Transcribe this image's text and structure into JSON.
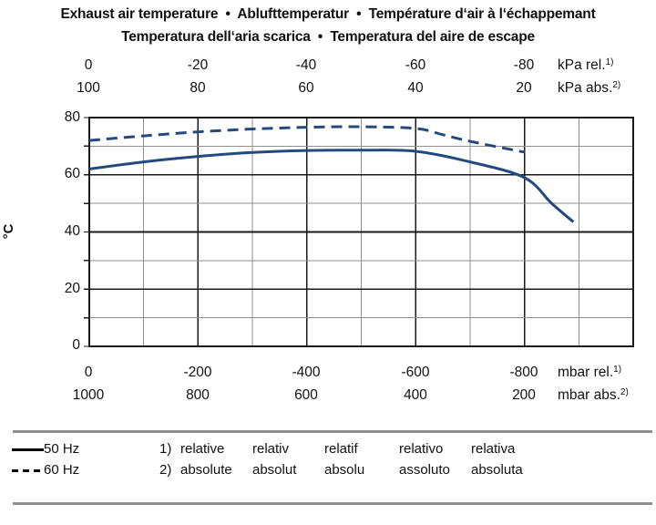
{
  "page": {
    "background": "#ffffff",
    "text_color": "#111111",
    "rule_color": "#8f8f8f"
  },
  "title": {
    "line1": "Exhaust air temperature  •  Ablufttemperatur  •  Température d‘air à l‘échappemant",
    "line2": "Temperatura dell‘aria scarica  •  Temperatura del aire de escape"
  },
  "chart_data": {
    "type": "line",
    "title": "Exhaust air temperature  •  Ablufttemperatur  •  Température d‘air à l‘échappemant  /  Temperatura dell‘aria scarica  •  Temperatura del aire de escape",
    "grid": {
      "major_color": "#1a1a1a",
      "minor_color": "#8f8f8f",
      "border_color": "#1a1a1a"
    },
    "x_axis": {
      "range_mbar_rel": [
        0,
        -1000
      ],
      "minor_step": 100,
      "major_step": 200,
      "top_row_1": {
        "ticks": [
          "0",
          "-20",
          "-40",
          "-60",
          "-80"
        ],
        "unit": "kPa rel.",
        "unit_sup": "1)"
      },
      "top_row_2": {
        "ticks": [
          "100",
          "80",
          "60",
          "40",
          "20"
        ],
        "unit": "kPa abs.",
        "unit_sup": "2)"
      },
      "bottom_row_1": {
        "ticks": [
          "0",
          "-200",
          "-400",
          "-600",
          "-800"
        ],
        "unit": "mbar rel.",
        "unit_sup": "1)"
      },
      "bottom_row_2": {
        "ticks": [
          "1000",
          "800",
          "600",
          "400",
          "200"
        ],
        "unit": "mbar abs.",
        "unit_sup": "2)"
      }
    },
    "y_axis": {
      "label": "°C",
      "range": [
        0,
        80
      ],
      "minor_step": 10,
      "major_step": 20,
      "ticks_top_to_bottom": [
        "80",
        "60",
        "40",
        "20",
        "0"
      ]
    },
    "series": [
      {
        "name": "50 Hz",
        "style": "solid",
        "color": "#24497f",
        "points_mbar_rel_vs_degC": [
          [
            0,
            62
          ],
          [
            -100,
            64.5
          ],
          [
            -200,
            66.4
          ],
          [
            -300,
            67.8
          ],
          [
            -400,
            68.5
          ],
          [
            -500,
            68.6
          ],
          [
            -600,
            68.2
          ],
          [
            -700,
            64.5
          ],
          [
            -800,
            59
          ],
          [
            -850,
            50
          ],
          [
            -890,
            43.5
          ]
        ]
      },
      {
        "name": "60 Hz",
        "style": "dashed",
        "color": "#24497f",
        "points_mbar_rel_vs_degC": [
          [
            0,
            72
          ],
          [
            -100,
            73.6
          ],
          [
            -200,
            75
          ],
          [
            -300,
            76
          ],
          [
            -400,
            76.6
          ],
          [
            -500,
            76.8
          ],
          [
            -600,
            76.2
          ],
          [
            -650,
            74
          ],
          [
            -700,
            71.7
          ],
          [
            -800,
            67.9
          ]
        ]
      }
    ]
  },
  "legend": {
    "items": [
      {
        "label": "50 Hz",
        "style": "solid"
      },
      {
        "label": "60 Hz",
        "style": "dashed"
      }
    ]
  },
  "footnotes": {
    "rows": [
      {
        "marker": "1)",
        "terms": [
          "relative",
          "relativ",
          "relatif",
          "relativo",
          "relativa"
        ]
      },
      {
        "marker": "2)",
        "terms": [
          "absolute",
          "absolut",
          "absolu",
          "assoluto",
          "absoluta"
        ]
      }
    ]
  }
}
